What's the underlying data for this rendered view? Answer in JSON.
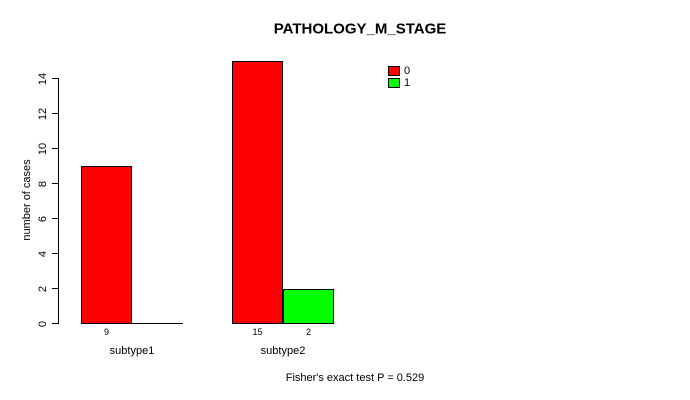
{
  "chart_data": {
    "type": "bar",
    "title": "PATHOLOGY_M_STAGE",
    "xlabel": "",
    "ylabel": "number of cases",
    "ylim": [
      0,
      14
    ],
    "yticks": [
      0,
      2,
      4,
      6,
      8,
      10,
      12,
      14
    ],
    "categories": [
      "subtype1",
      "subtype2"
    ],
    "series": [
      {
        "name": "0",
        "color": "#FF0000",
        "values": [
          9,
          15
        ]
      },
      {
        "name": "1",
        "color": "#00FF00",
        "values": [
          0,
          2
        ]
      }
    ],
    "bar_value_labels": {
      "subtype1": [
        "9",
        ""
      ],
      "subtype2": [
        "15",
        "2"
      ]
    },
    "legend": {
      "position": "top-right",
      "entries": [
        "0",
        "1"
      ]
    },
    "annotation": "Fisher's exact test P = 0.529",
    "grid": false,
    "background": "#ffffff",
    "axis_color": "#000000"
  }
}
